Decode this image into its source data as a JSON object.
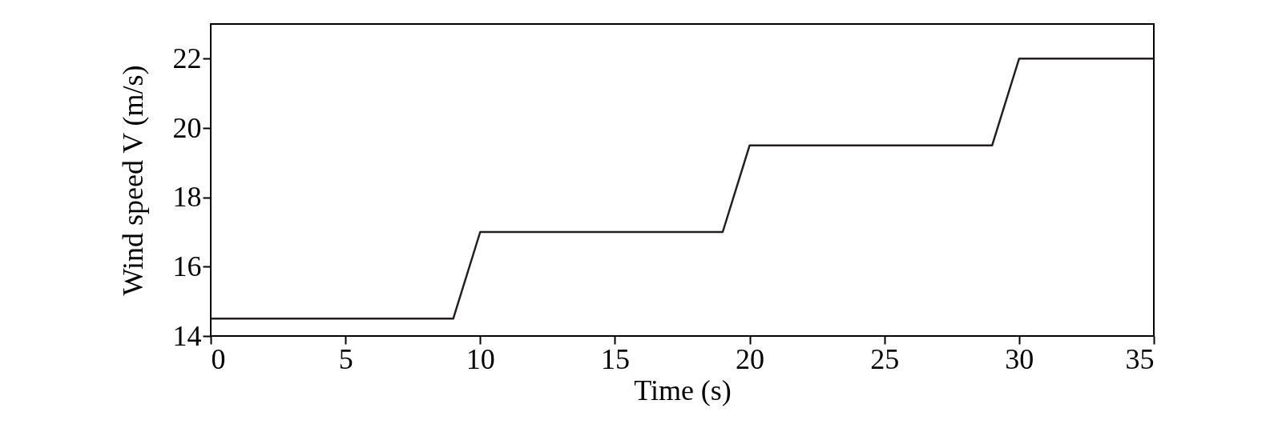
{
  "chart_data": {
    "type": "line",
    "xlabel": "Time (s)",
    "ylabel": "Wind speed V (m/s)",
    "x": [
      0,
      9,
      10,
      19,
      20,
      29,
      30,
      35
    ],
    "series": [
      {
        "color": "#231f20",
        "values": [
          14.5,
          14.5,
          17,
          17,
          19.5,
          19.5,
          22,
          22
        ]
      }
    ],
    "xlim": [
      0,
      35
    ],
    "ylim": [
      14,
      23
    ],
    "xticks": [
      0,
      5,
      10,
      15,
      20,
      25,
      30,
      35
    ],
    "yticks": [
      14,
      16,
      18,
      20,
      22
    ],
    "grid": false,
    "marker": "none",
    "line_style": "solid"
  }
}
